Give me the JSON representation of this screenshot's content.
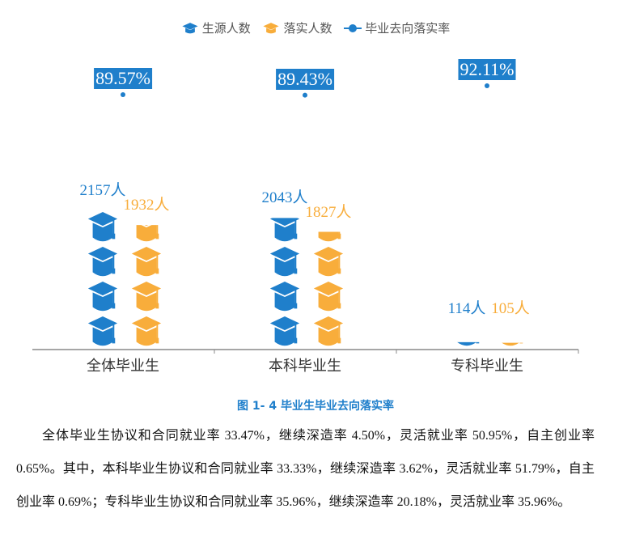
{
  "chart_data": {
    "type": "pictorial-bar",
    "legend": [
      "生源人数",
      "落实人数",
      "毕业去向落实率"
    ],
    "legend_position": "top",
    "categories": [
      "全体毕业生",
      "本科毕业生",
      "专科毕业生"
    ],
    "series": [
      {
        "name": "生源人数",
        "values": [
          2157,
          2043,
          114
        ],
        "labels": [
          "2157人",
          "2043人",
          "114人"
        ],
        "color": "#1f7fcb",
        "symbol": "graduation-cap-icon"
      },
      {
        "name": "落实人数",
        "values": [
          1932,
          1827,
          105
        ],
        "labels": [
          "1932人",
          "1827人",
          "105人"
        ],
        "color": "#f8ad3b",
        "symbol": "graduation-cap-icon"
      },
      {
        "name": "毕业去向落实率",
        "values": [
          89.57,
          89.43,
          92.11
        ],
        "labels": [
          "89.57%",
          "89.43%",
          "92.11%"
        ],
        "color": "#1f7fcb"
      }
    ],
    "grid": false
  },
  "caption": "图 1- 4  毕业生毕业去向落实率",
  "paragraph": "全体毕业生协议和合同就业率 33.47%，继续深造率 4.50%，灵活就业率 50.95%，自主创业率 0.65%。其中，本科毕业生协议和合同就业率 33.33%，继续深造率 3.62%，灵活就业率 51.79%，自主创业率 0.69%；专科毕业生协议和合同就业率 35.96%，继续深造率 20.18%，灵活就业率 35.96%。"
}
